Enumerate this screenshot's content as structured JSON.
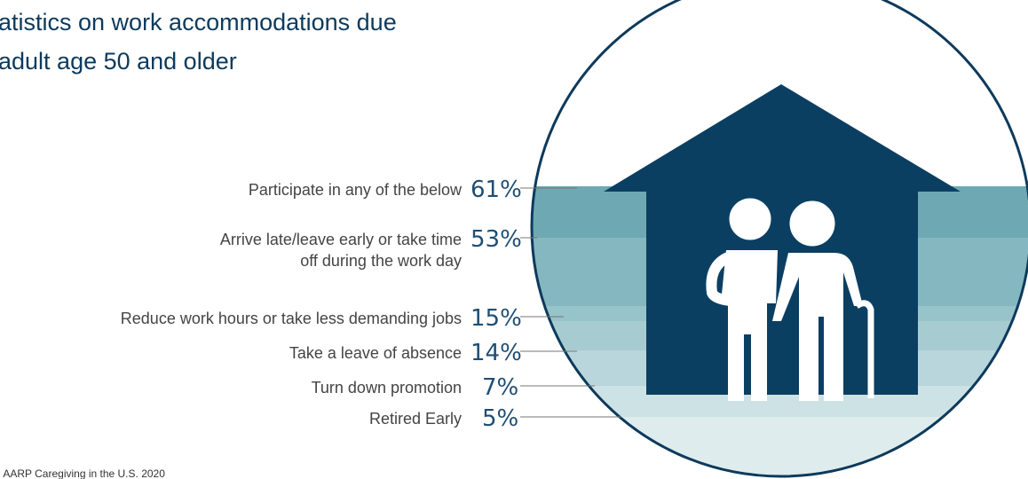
{
  "title": [
    "atistics on work accommodations due",
    "adult age 50 and older"
  ],
  "items": [
    {
      "label": "Participate in any of the below",
      "value": "61%"
    },
    {
      "label": [
        "Arrive late/leave early or take time",
        "off during the work day"
      ],
      "value": "53%"
    },
    {
      "label": "Reduce work hours or take less demanding jobs",
      "value": "15%"
    },
    {
      "label": "Take a leave of absence",
      "value": "14%"
    },
    {
      "label": "Turn down promotion",
      "value": "7%"
    },
    {
      "label": "Retired Early",
      "value": "5%"
    }
  ],
  "source": "l AARP Caregiving in the U.S. 2020"
}
